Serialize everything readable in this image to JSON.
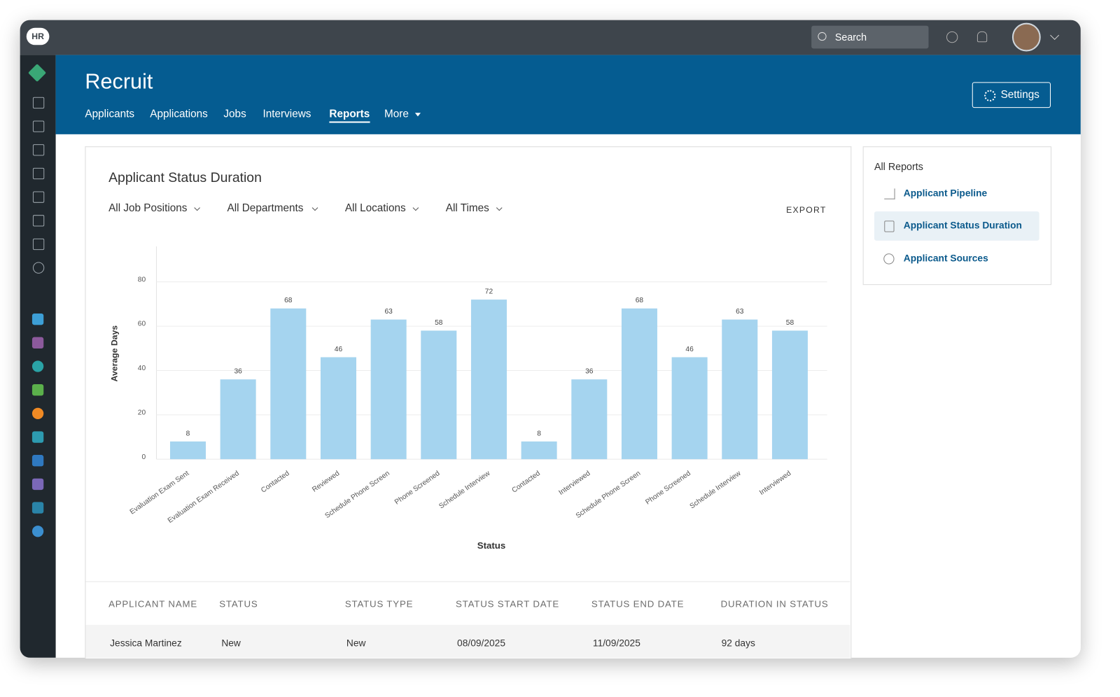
{
  "app": {
    "logo": "HR",
    "search": "Search"
  },
  "header": {
    "title": "Recruit",
    "settings": "Settings",
    "nav": [
      "Applicants",
      "Applications",
      "Jobs",
      "Interviews",
      "Reports",
      "More"
    ]
  },
  "report": {
    "title": "Applicant Status Duration",
    "filters": [
      "All Job Positions",
      "All Departments",
      "All Locations",
      "All Times"
    ],
    "export": "EXPORT"
  },
  "chart_data": {
    "type": "bar",
    "xlabel": "Status",
    "ylabel": "Average Days",
    "categories": [
      "Evaluation Exam Sent",
      "Evaluation Exam Received",
      "Contacted",
      "Reviewed",
      "Schedule Phone Screen",
      "Phone Screened",
      "Schedule Interview",
      "Contacted",
      "Interviewed",
      "Schedule Phone Screen",
      "Phone Screened",
      "Schedule Interview",
      "Interviewed"
    ],
    "values": [
      8,
      36,
      68,
      46,
      63,
      58,
      72,
      8,
      36,
      68,
      46,
      63,
      58
    ],
    "color": "#a5d4ef",
    "ylim": [
      0,
      96
    ],
    "yticks": [
      0,
      20,
      40,
      60,
      80
    ],
    "grid": true
  },
  "table": {
    "columns": [
      "APPLICANT NAME",
      "STATUS",
      "STATUS TYPE",
      "STATUS START DATE",
      "STATUS END DATE",
      "DURATION IN STATUS"
    ],
    "rows": [
      [
        "Jessica Martinez",
        "New",
        "New",
        "08/09/2025",
        "11/09/2025",
        "92 days"
      ]
    ]
  },
  "sidebar": {
    "title": "All Reports",
    "items": [
      "Applicant Pipeline",
      "Applicant Status Duration",
      "Applicant Sources"
    ]
  }
}
